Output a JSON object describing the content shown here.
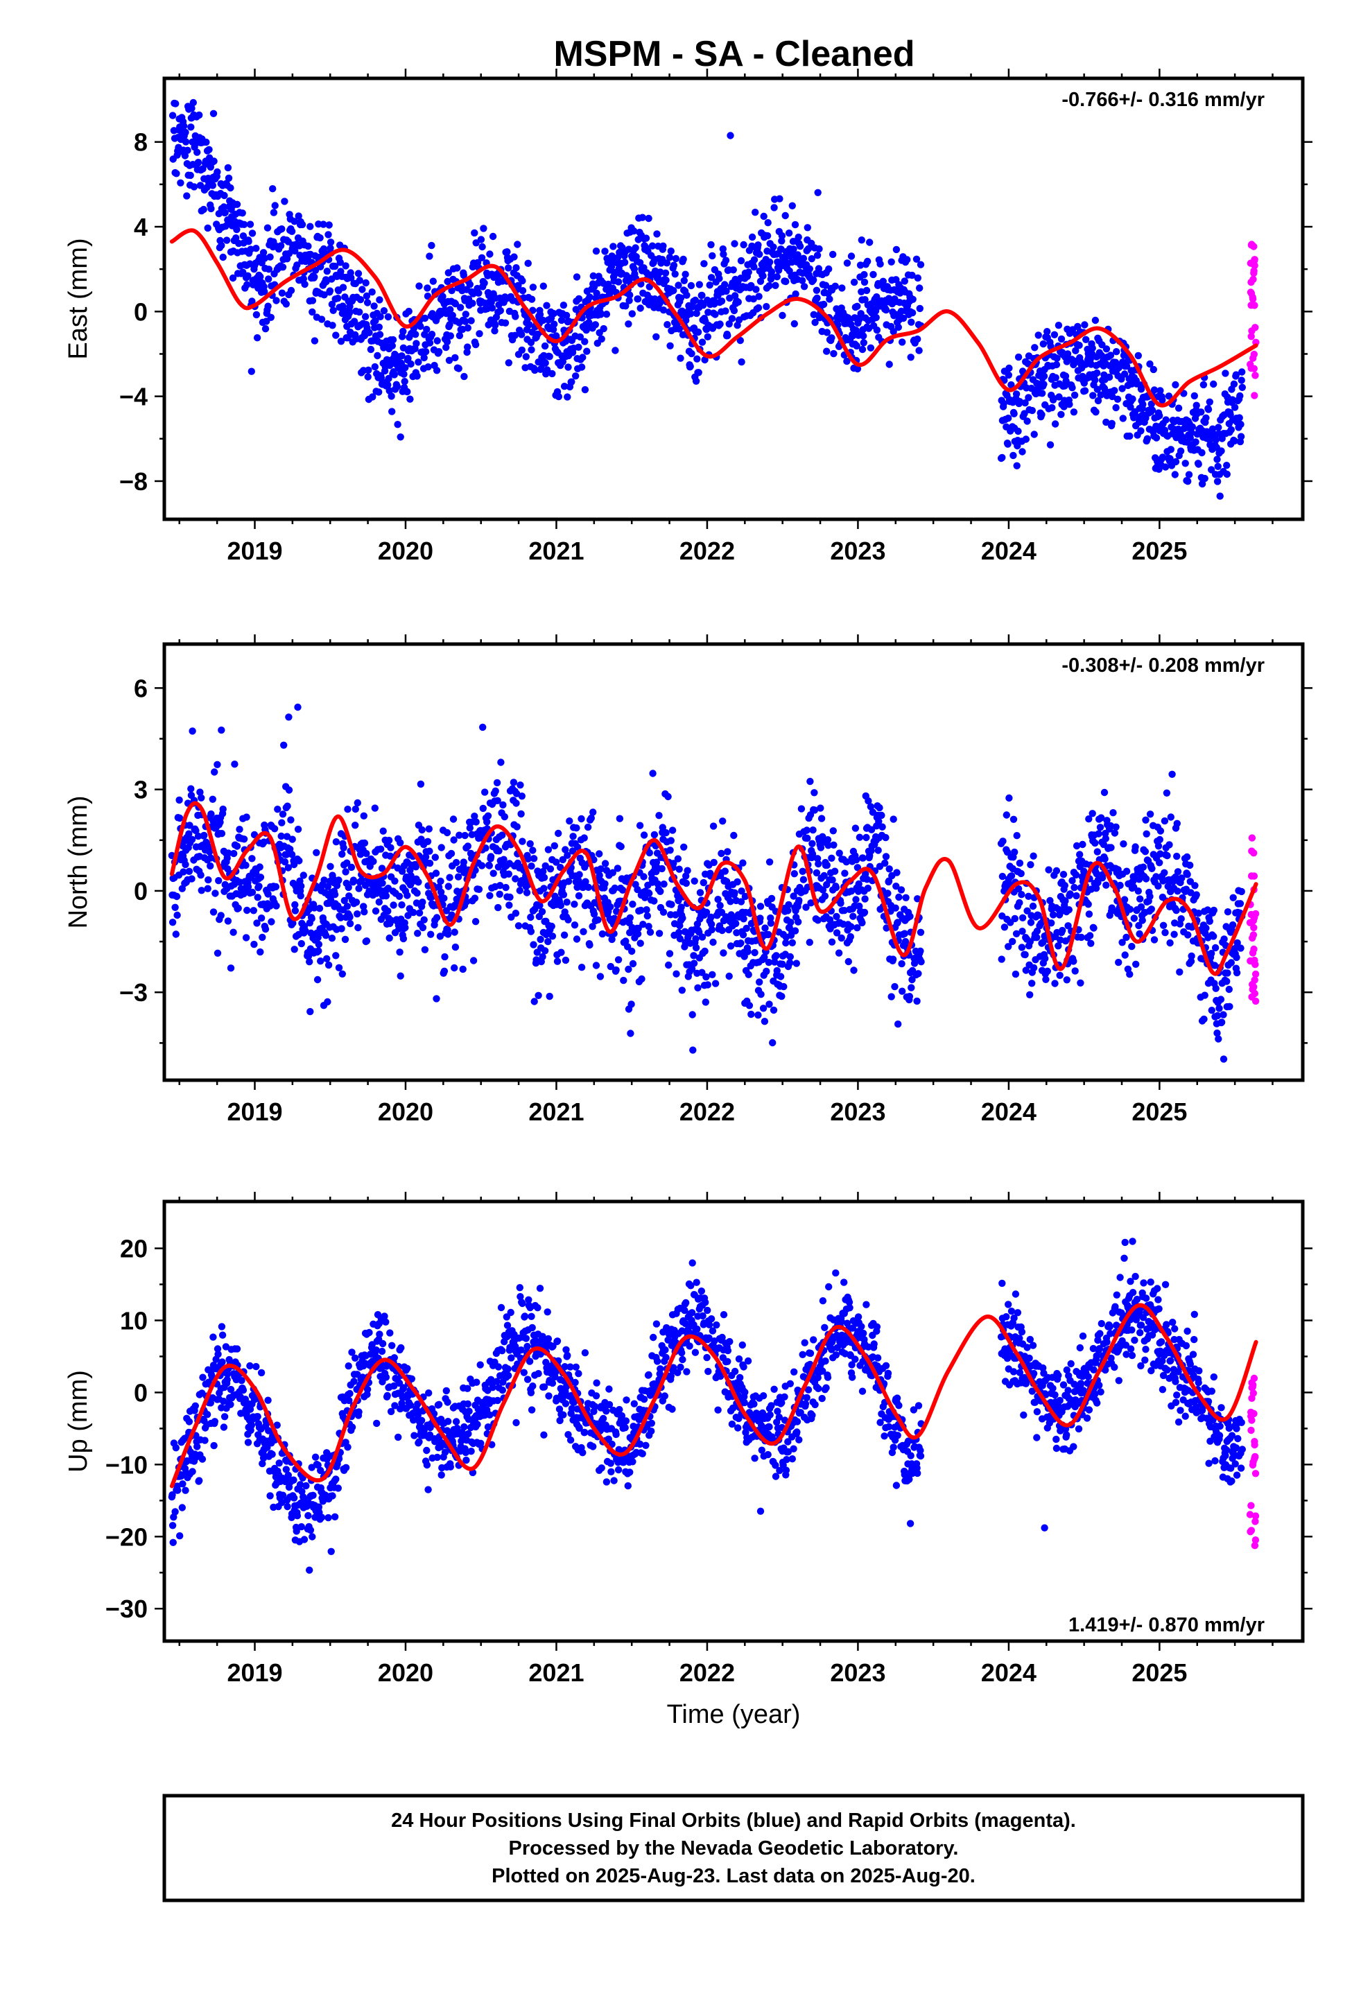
{
  "title": "MSPM  - SA - Cleaned",
  "colors": {
    "final": "#0000ff",
    "rapid": "#ff00ff",
    "model": "#ff0000",
    "frame": "#000000"
  },
  "footer": {
    "line1": "24 Hour Positions Using Final Orbits (blue) and Rapid Orbits (magenta).",
    "line2": "Processed by the Nevada Geodetic Laboratory.",
    "line3": "Plotted on 2025-Aug-23. Last data on 2025-Aug-20."
  },
  "chart_data": [
    {
      "type": "scatter",
      "ylabel": "East (mm)",
      "xlabel": "",
      "rate": "-0.766+/- 0.316 mm/yr",
      "rate_placement": "top-right",
      "xlim": [
        2018.4,
        2025.95
      ],
      "ylim": [
        -9.8,
        11.0
      ],
      "x_ticks": [
        "2019",
        "2020",
        "2021",
        "2022",
        "2023",
        "2024",
        "2025"
      ],
      "y_ticks": [
        8,
        4,
        0,
        -4,
        -8
      ],
      "y_tick_labels": [
        "8",
        "4",
        "0",
        "−4",
        "−8"
      ],
      "series": [],
      "data_summary": {
        "final_orbits": {
          "x": [
            2018.45,
            2018.6,
            2018.75,
            2018.9,
            2019.05,
            2019.2,
            2019.35,
            2019.5,
            2019.65,
            2019.8,
            2019.95,
            2020.1,
            2020.3,
            2020.5,
            2020.7,
            2020.9,
            2021.1,
            2021.3,
            2021.5,
            2021.7,
            2021.9,
            2022.1,
            2022.3,
            2022.5,
            2022.7,
            2022.9,
            2023.1,
            2023.35,
            2024.0,
            2024.2,
            2024.4,
            2024.6,
            2024.8,
            2025.0,
            2025.2,
            2025.4,
            2025.55
          ],
          "mean": [
            8.3,
            7.8,
            5.5,
            3.2,
            1.3,
            3.8,
            2.5,
            1.2,
            0.5,
            -1.8,
            -2.8,
            -1.2,
            0.2,
            0.9,
            1.1,
            -1.6,
            -1.5,
            0.8,
            2.3,
            1.6,
            -0.8,
            0.9,
            1.8,
            2.2,
            1.5,
            -1.2,
            0.6,
            0.8,
            -5.0,
            -3.2,
            -2.5,
            -2.6,
            -3.5,
            -5.5,
            -5.8,
            -5.5,
            -4.2
          ],
          "scatter_mm": 1.2
        },
        "rapid_orbits": {
          "x": [
            2025.6,
            2025.64
          ],
          "range": [
            -4.6,
            3.2
          ]
        },
        "model": {
          "x": [
            2018.45,
            2018.6,
            2018.75,
            2018.9,
            2019.0,
            2019.2,
            2019.4,
            2019.6,
            2019.8,
            2020.0,
            2020.2,
            2020.4,
            2020.6,
            2020.8,
            2021.0,
            2021.2,
            2021.4,
            2021.6,
            2021.8,
            2022.0,
            2022.2,
            2022.4,
            2022.6,
            2022.8,
            2023.0,
            2023.2,
            2023.4,
            2023.6,
            2023.8,
            2024.0,
            2024.2,
            2024.4,
            2024.6,
            2024.8,
            2025.0,
            2025.2,
            2025.4,
            2025.64
          ],
          "y": [
            3.3,
            3.8,
            2.3,
            0.4,
            0.3,
            1.4,
            2.2,
            2.9,
            1.6,
            -0.7,
            0.8,
            1.5,
            2.1,
            0.1,
            -1.4,
            0.2,
            0.7,
            1.5,
            -0.2,
            -2.1,
            -1.2,
            -0.1,
            0.6,
            -0.3,
            -2.5,
            -1.3,
            -0.9,
            0.0,
            -1.5,
            -3.7,
            -2.2,
            -1.5,
            -0.8,
            -2.0,
            -4.4,
            -3.3,
            -2.6,
            -1.6
          ]
        }
      }
    },
    {
      "type": "scatter",
      "ylabel": "North (mm)",
      "xlabel": "",
      "rate": "-0.308+/- 0.208 mm/yr",
      "rate_placement": "top-right",
      "xlim": [
        2018.4,
        2025.95
      ],
      "ylim": [
        -5.6,
        7.3
      ],
      "x_ticks": [
        "2019",
        "2020",
        "2021",
        "2022",
        "2023",
        "2024",
        "2025"
      ],
      "y_ticks": [
        6,
        3,
        0,
        -3
      ],
      "y_tick_labels": [
        "6",
        "3",
        "0",
        "−3"
      ],
      "series": [],
      "data_summary": {
        "final_orbits": {
          "x": [
            2018.45,
            2018.6,
            2018.75,
            2018.9,
            2019.05,
            2019.2,
            2019.35,
            2019.5,
            2019.65,
            2019.8,
            2019.95,
            2020.1,
            2020.3,
            2020.5,
            2020.7,
            2020.9,
            2021.1,
            2021.3,
            2021.5,
            2021.7,
            2021.9,
            2022.1,
            2022.3,
            2022.5,
            2022.7,
            2022.9,
            2023.1,
            2023.35,
            2024.0,
            2024.2,
            2024.4,
            2024.6,
            2024.8,
            2025.0,
            2025.2,
            2025.4,
            2025.55
          ],
          "mean": [
            0.2,
            1.6,
            1.4,
            0.0,
            0.4,
            1.5,
            -1.2,
            -0.7,
            0.6,
            0.2,
            -0.3,
            0.6,
            -0.7,
            1.2,
            1.4,
            -1.0,
            0.8,
            -0.3,
            -0.9,
            1.2,
            -1.6,
            0.1,
            -1.5,
            -2.0,
            1.6,
            -1.0,
            1.5,
            -2.0,
            0.4,
            -1.4,
            -1.0,
            1.3,
            -0.5,
            0.8,
            -0.2,
            -2.8,
            -0.5
          ],
          "scatter_mm": 1.0
        },
        "rapid_orbits": {
          "x": [
            2025.6,
            2025.64
          ],
          "range": [
            -3.3,
            1.6
          ]
        },
        "model": {
          "x": [
            2018.45,
            2018.55,
            2018.65,
            2018.8,
            2018.95,
            2019.1,
            2019.25,
            2019.4,
            2019.55,
            2019.7,
            2019.85,
            2020.0,
            2020.15,
            2020.3,
            2020.45,
            2020.6,
            2020.75,
            2020.9,
            2021.05,
            2021.2,
            2021.35,
            2021.5,
            2021.65,
            2021.8,
            2021.95,
            2022.1,
            2022.25,
            2022.4,
            2022.6,
            2022.75,
            2022.95,
            2023.1,
            2023.3,
            2023.45,
            2023.6,
            2023.8,
            2024.05,
            2024.2,
            2024.35,
            2024.55,
            2024.7,
            2024.85,
            2025.05,
            2025.2,
            2025.35,
            2025.45,
            2025.64
          ],
          "y": [
            0.5,
            2.3,
            2.4,
            0.4,
            1.2,
            1.6,
            -0.8,
            0.3,
            2.2,
            0.6,
            0.5,
            1.3,
            0.4,
            -1.0,
            0.8,
            1.9,
            1.2,
            -0.3,
            0.6,
            1.1,
            -1.2,
            0.3,
            1.5,
            0.2,
            -0.5,
            0.8,
            0.3,
            -1.7,
            1.3,
            -0.6,
            0.3,
            0.5,
            -1.9,
            0.1,
            0.9,
            -1.1,
            0.2,
            -0.2,
            -2.3,
            0.7,
            0.1,
            -1.5,
            -0.3,
            -0.6,
            -2.4,
            -1.8,
            0.2
          ]
        }
      }
    },
    {
      "type": "scatter",
      "ylabel": "Up (mm)",
      "xlabel": "Time (year)",
      "rate": "1.419+/- 0.870 mm/yr",
      "rate_placement": "bottom-right",
      "xlim": [
        2018.4,
        2025.95
      ],
      "ylim": [
        -34.5,
        26.5
      ],
      "x_ticks": [
        "2019",
        "2020",
        "2021",
        "2022",
        "2023",
        "2024",
        "2025"
      ],
      "y_ticks": [
        20,
        10,
        0,
        -10,
        -20,
        -30
      ],
      "y_tick_labels": [
        "20",
        "10",
        "0",
        "−10",
        "−20",
        "−30"
      ],
      "series": [],
      "data_summary": {
        "final_orbits": {
          "x": [
            2018.45,
            2018.6,
            2018.75,
            2018.9,
            2019.05,
            2019.2,
            2019.35,
            2019.5,
            2019.65,
            2019.8,
            2019.95,
            2020.1,
            2020.3,
            2020.5,
            2020.7,
            2020.9,
            2021.1,
            2021.3,
            2021.5,
            2021.7,
            2021.9,
            2022.1,
            2022.3,
            2022.5,
            2022.7,
            2022.9,
            2023.1,
            2023.35,
            2024.0,
            2024.2,
            2024.4,
            2024.6,
            2024.8,
            2025.0,
            2025.2,
            2025.4,
            2025.55
          ],
          "mean": [
            -15.0,
            -5.5,
            1.5,
            0.5,
            -5.0,
            -13.0,
            -16.5,
            -14.0,
            1.0,
            5.5,
            2.0,
            -4.0,
            -7.0,
            -2.5,
            6.5,
            6.0,
            -1.5,
            -5.5,
            -8.5,
            4.0,
            10.0,
            5.0,
            -4.0,
            -6.5,
            2.0,
            10.0,
            5.0,
            -10.5,
            8.0,
            0.0,
            -3.0,
            4.5,
            12.0,
            8.0,
            1.5,
            -6.0,
            -7.0
          ],
          "scatter_mm": 3.0
        },
        "rapid_orbits": {
          "x": [
            2025.6,
            2025.64
          ],
          "range": [
            -21.5,
            2.0
          ]
        },
        "model": {
          "x": [
            2018.45,
            2018.6,
            2018.8,
            2019.0,
            2019.2,
            2019.45,
            2019.65,
            2019.85,
            2020.05,
            2020.25,
            2020.45,
            2020.65,
            2020.85,
            2021.05,
            2021.25,
            2021.45,
            2021.65,
            2021.85,
            2022.05,
            2022.25,
            2022.45,
            2022.65,
            2022.85,
            2023.05,
            2023.25,
            2023.4,
            2023.6,
            2023.85,
            2024.05,
            2024.2,
            2024.4,
            2024.6,
            2024.85,
            2025.05,
            2025.25,
            2025.45,
            2025.64
          ],
          "y": [
            -13.0,
            -5.0,
            3.5,
            0.5,
            -8.0,
            -12.0,
            -2.0,
            4.5,
            0.5,
            -6.0,
            -10.5,
            -1.5,
            6.0,
            2.5,
            -5.0,
            -8.5,
            -1.0,
            7.5,
            5.0,
            -3.0,
            -7.0,
            1.0,
            9.0,
            5.0,
            -3.0,
            -6.0,
            3.0,
            10.5,
            5.5,
            0.0,
            -4.5,
            3.0,
            12.0,
            7.5,
            0.0,
            -3.5,
            7.0
          ]
        }
      }
    }
  ]
}
